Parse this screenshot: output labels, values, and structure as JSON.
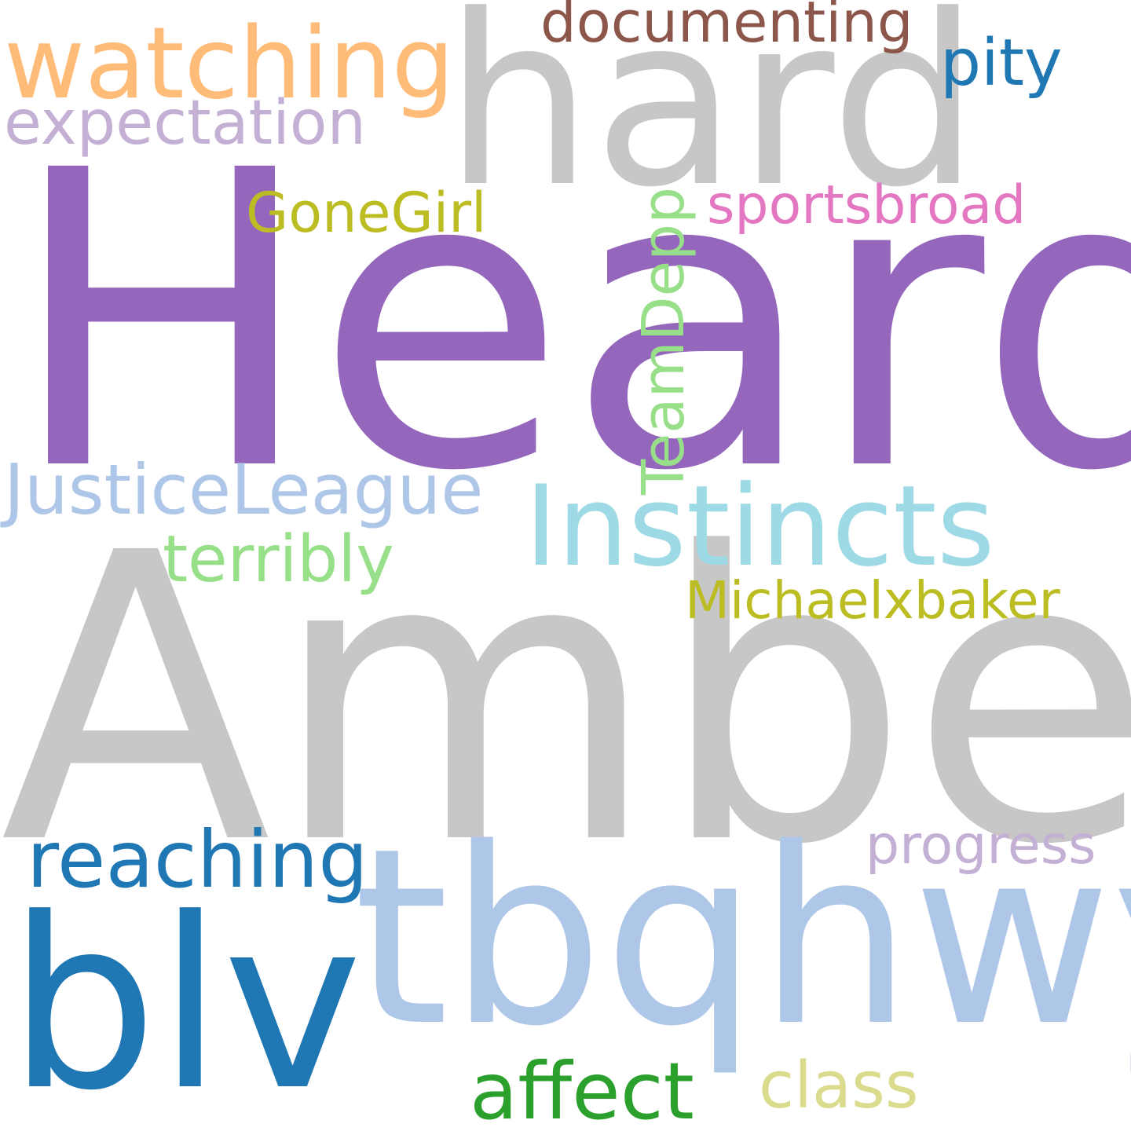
{
  "words": {
    "heard": {
      "text": "Heard",
      "color": "#9467bd"
    },
    "amber": {
      "text": "Amber",
      "color": "#c7c7c7"
    },
    "hard": {
      "text": "hard",
      "color": "#c7c7c7"
    },
    "tbqhwy": {
      "text": "tbqhwy",
      "color": "#aec7e8"
    },
    "blv": {
      "text": "blv",
      "color": "#1f77b4"
    },
    "instincts": {
      "text": "Instincts",
      "color": "#9edae5"
    },
    "watching": {
      "text": "watching",
      "color": "#ffbb78"
    },
    "reaching": {
      "text": "reaching",
      "color": "#1f77b4"
    },
    "affect": {
      "text": "affect",
      "color": "#2ca02c"
    },
    "justice": {
      "text": "JusticeLeague",
      "color": "#aec7e8"
    },
    "terribly": {
      "text": "terribly",
      "color": "#98df8a"
    },
    "class": {
      "text": "class",
      "color": "#dbdb8d"
    },
    "expectation": {
      "text": "expectation",
      "color": "#c5b0d5"
    },
    "documenting": {
      "text": "documenting",
      "color": "#8c564b"
    },
    "pity": {
      "text": "pity",
      "color": "#1f77b4"
    },
    "sportsbroad": {
      "text": "sportsbroad",
      "color": "#e377c2"
    },
    "gonegirl": {
      "text": "GoneGirl",
      "color": "#bcbd22"
    },
    "michael": {
      "text": "Michaelxbaker",
      "color": "#bcbd22"
    },
    "progress": {
      "text": "progress",
      "color": "#c5b0d5"
    },
    "teamdepp": {
      "text": "TeamDepp",
      "color": "#98df8a"
    }
  }
}
